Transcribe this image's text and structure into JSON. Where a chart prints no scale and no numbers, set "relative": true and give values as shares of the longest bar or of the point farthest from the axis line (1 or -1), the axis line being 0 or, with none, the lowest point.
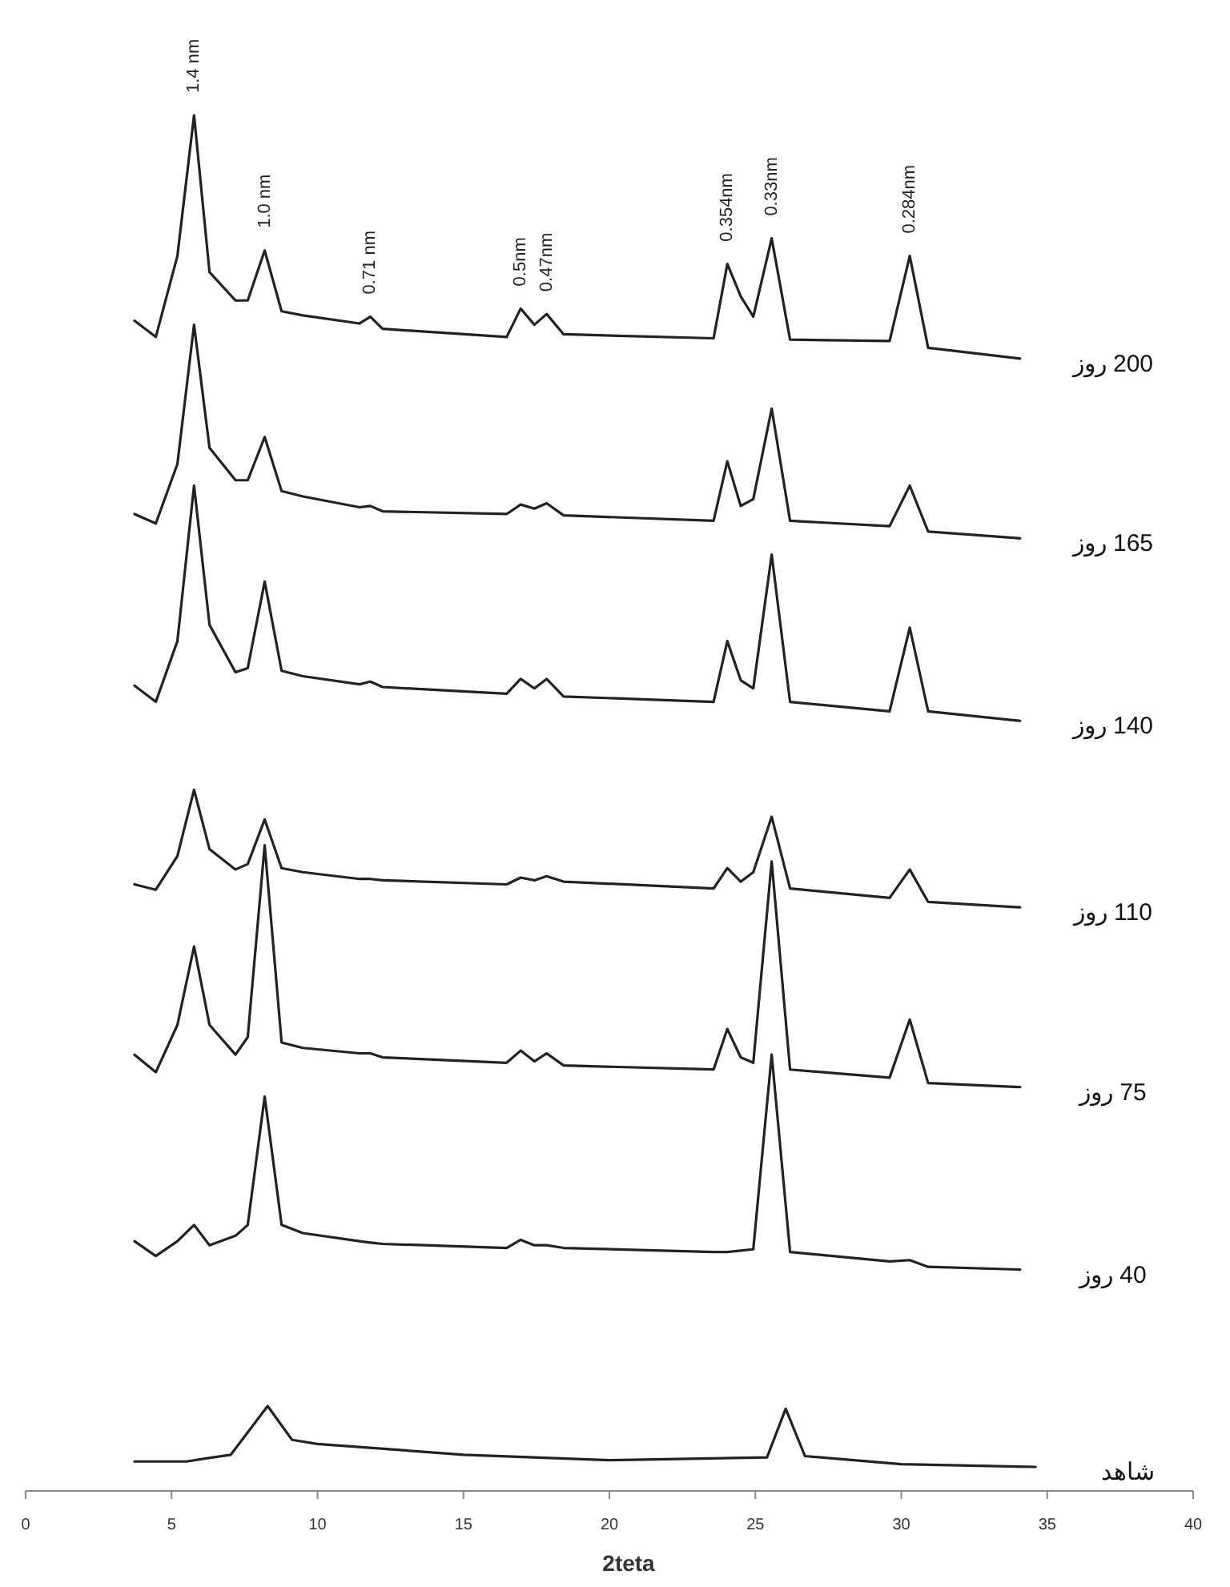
{
  "chart_data": {
    "type": "line",
    "relative": true,
    "xlabel": "2teta",
    "xlim": [
      0,
      40
    ],
    "xticks": [
      0,
      5,
      10,
      15,
      20,
      25,
      30,
      35,
      40
    ],
    "grid": false,
    "legend": false,
    "marker": "none",
    "line_style": "solid",
    "x": [
      3.73,
      4.46,
      5.2,
      5.77,
      6.3,
      7.19,
      7.61,
      8.19,
      8.77,
      9.5,
      11.44,
      11.81,
      12.23,
      16.48,
      16.96,
      17.43,
      17.85,
      18.43,
      23.57,
      24.04,
      24.5,
      24.93,
      25.56,
      26.19,
      29.6,
      30.29,
      30.92,
      34.07
    ],
    "series": [
      {
        "name": "200 روز",
        "color": "#222222",
        "values": [
          0.848,
          0.836,
          0.896,
          1,
          0.884,
          0.863,
          0.863,
          0.9,
          0.855,
          0.852,
          0.846,
          0.851,
          0.842,
          0.836,
          0.857,
          0.845,
          0.853,
          0.838,
          0.835,
          0.89,
          0.866,
          0.851,
          0.909,
          0.834,
          0.833,
          0.896,
          0.828,
          0.82
        ]
      },
      {
        "name": "165 روز",
        "color": "#222222",
        "values": [
          0.705,
          0.698,
          0.742,
          0.845,
          0.754,
          0.73,
          0.73,
          0.762,
          0.722,
          0.718,
          0.71,
          0.711,
          0.707,
          0.705,
          0.712,
          0.709,
          0.713,
          0.704,
          0.7,
          0.744,
          0.711,
          0.716,
          0.783,
          0.7,
          0.696,
          0.726,
          0.692,
          0.687
        ]
      },
      {
        "name": "140 روز",
        "color": "#222222",
        "values": [
          0.578,
          0.566,
          0.611,
          0.726,
          0.623,
          0.588,
          0.591,
          0.655,
          0.589,
          0.585,
          0.579,
          0.581,
          0.577,
          0.572,
          0.583,
          0.576,
          0.583,
          0.57,
          0.566,
          0.611,
          0.582,
          0.576,
          0.675,
          0.566,
          0.559,
          0.621,
          0.559,
          0.552
        ]
      },
      {
        "name": "110 روز",
        "color": "#222222",
        "values": [
          0.431,
          0.427,
          0.452,
          0.501,
          0.457,
          0.442,
          0.446,
          0.479,
          0.443,
          0.44,
          0.435,
          0.435,
          0.434,
          0.431,
          0.436,
          0.434,
          0.437,
          0.433,
          0.428,
          0.443,
          0.433,
          0.44,
          0.481,
          0.428,
          0.421,
          0.442,
          0.418,
          0.414
        ]
      },
      {
        "name": "75 روز",
        "color": "#222222",
        "values": [
          0.305,
          0.292,
          0.327,
          0.385,
          0.327,
          0.305,
          0.318,
          0.46,
          0.314,
          0.31,
          0.306,
          0.306,
          0.303,
          0.299,
          0.308,
          0.3,
          0.306,
          0.297,
          0.294,
          0.324,
          0.303,
          0.299,
          0.448,
          0.294,
          0.288,
          0.331,
          0.284,
          0.281
        ]
      },
      {
        "name": "40 روز",
        "color": "#222222",
        "values": [
          0.167,
          0.156,
          0.167,
          0.179,
          0.164,
          0.171,
          0.179,
          0.274,
          0.179,
          0.173,
          0.167,
          0.166,
          0.165,
          0.162,
          0.168,
          0.164,
          0.164,
          0.162,
          0.159,
          0.159,
          0.16,
          0.161,
          0.305,
          0.159,
          0.152,
          0.153,
          0.148,
          0.146
        ]
      },
      {
        "name": "شاهد",
        "color": "#222222",
        "x": [
          3.73,
          5.5,
          7.03,
          8.29,
          9.13,
          10,
          15,
          20,
          25.4,
          26.04,
          26.7,
          30,
          34.6
        ],
        "values": [
          0.004,
          0.004,
          0.009,
          0.045,
          0.02,
          0.017,
          0.009,
          0.005,
          0.007,
          0.043,
          0.008,
          0.002,
          0
        ]
      }
    ],
    "annotations": [
      {
        "text": "1.4 nm",
        "x": 5.77,
        "y": 1
      },
      {
        "text": "1.0 nm",
        "x": 8.19,
        "y": 0.9
      },
      {
        "text": "0.71 nm",
        "x": 11.81,
        "y": 0.851
      },
      {
        "text": "0.5nm",
        "x": 16.96,
        "y": 0.857
      },
      {
        "text": "0.47nm",
        "x": 17.85,
        "y": 0.853
      },
      {
        "text": "0.354nm",
        "x": 24.04,
        "y": 0.89
      },
      {
        "text": "0.33nm",
        "x": 25.56,
        "y": 0.909
      },
      {
        "text": "0.284nm",
        "x": 30.29,
        "y": 0.896
      }
    ]
  }
}
